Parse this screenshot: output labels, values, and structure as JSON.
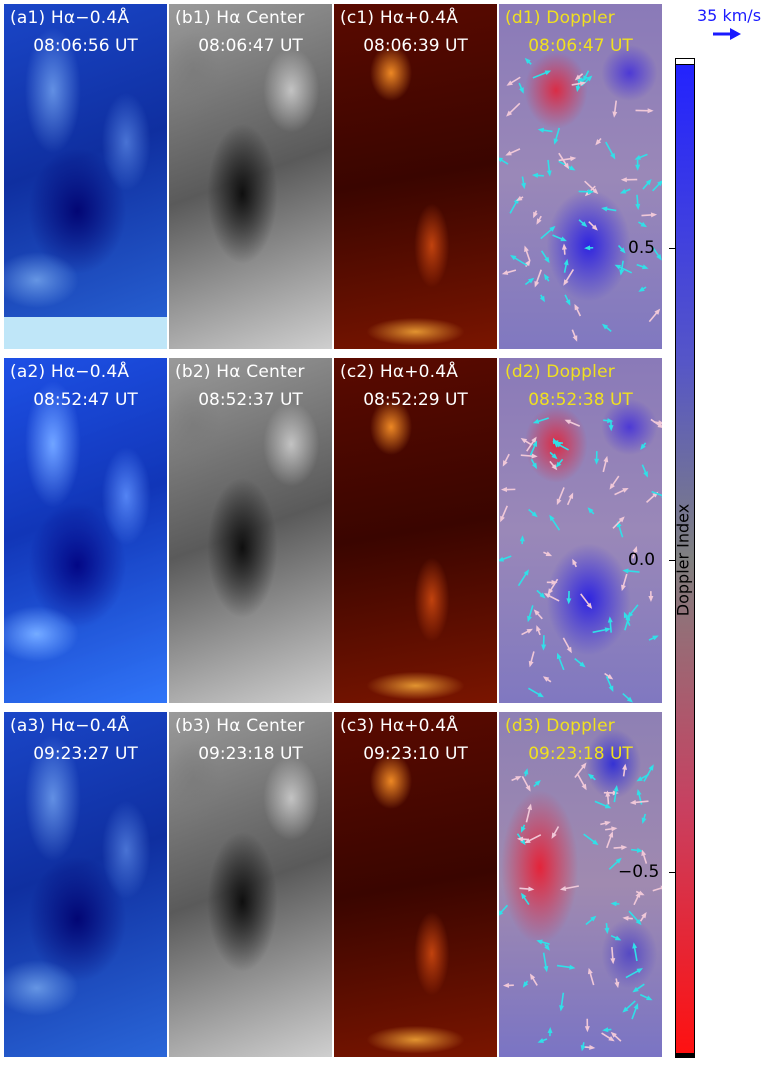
{
  "panels": [
    {
      "label": "(a1) Hα−0.4Å",
      "time": "08:06:56 UT"
    },
    {
      "label": "(b1) Hα Center",
      "time": "08:06:47 UT"
    },
    {
      "label": "(c1) Hα+0.4Å",
      "time": "08:06:39 UT"
    },
    {
      "label": "(d1) Doppler",
      "time": "08:06:47 UT"
    },
    {
      "label": "(a2) Hα−0.4Å",
      "time": "08:52:47 UT"
    },
    {
      "label": "(b2) Hα Center",
      "time": "08:52:37 UT"
    },
    {
      "label": "(c2) Hα+0.4Å",
      "time": "08:52:29 UT"
    },
    {
      "label": "(d2) Doppler",
      "time": "08:52:38 UT"
    },
    {
      "label": "(a3) Hα−0.4Å",
      "time": "09:23:27 UT"
    },
    {
      "label": "(b3) Hα Center",
      "time": "09:23:18 UT"
    },
    {
      "label": "(c3) Hα+0.4Å",
      "time": "09:23:10 UT"
    },
    {
      "label": "(d3) Doppler",
      "time": "09:23:18 UT"
    }
  ],
  "colorbar": {
    "label": "Doppler Index",
    "ticks": [
      "0.5",
      "0.0",
      "−0.5"
    ],
    "scale_label": "35 km/s",
    "colors": {
      "max": "#2222ff",
      "mid": "#808080",
      "min": "#ff1010"
    }
  },
  "arrow_colors": {
    "upflow": "#30e0e8",
    "downflow": "#f0c8d8"
  },
  "label_colors": {
    "intensity": "#ffffff",
    "doppler": "#f0e020"
  }
}
